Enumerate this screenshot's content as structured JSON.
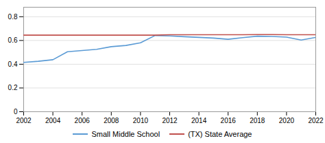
{
  "chart_data": {
    "type": "line",
    "x": [
      2002,
      2003,
      2004,
      2005,
      2006,
      2007,
      2008,
      2009,
      2010,
      2011,
      2012,
      2013,
      2014,
      2015,
      2016,
      2017,
      2018,
      2019,
      2020,
      2021,
      2022
    ],
    "series": [
      {
        "name": "Small Middle School",
        "color": "#5b9bd5",
        "values": [
          0.415,
          0.425,
          0.438,
          0.505,
          0.515,
          0.525,
          0.548,
          0.558,
          0.58,
          0.642,
          0.638,
          0.632,
          0.626,
          0.62,
          0.61,
          0.624,
          0.636,
          0.634,
          0.628,
          0.604,
          0.626
        ]
      },
      {
        "name": "(TX) State Average",
        "color": "#c0504d",
        "values": [
          0.645,
          0.645,
          0.645,
          0.645,
          0.645,
          0.645,
          0.645,
          0.645,
          0.645,
          0.645,
          0.648,
          0.648,
          0.648,
          0.648,
          0.648,
          0.648,
          0.65,
          0.65,
          0.648,
          0.648,
          0.648
        ]
      }
    ],
    "xlim": [
      2002,
      2022
    ],
    "xticks": [
      2002,
      2004,
      2006,
      2008,
      2010,
      2012,
      2014,
      2016,
      2018,
      2020,
      2022
    ],
    "ylim": [
      0,
      0.88
    ],
    "yticks": [
      0,
      0.2,
      0.4,
      0.6,
      0.8
    ],
    "grid": "y",
    "legend": "bottom"
  }
}
